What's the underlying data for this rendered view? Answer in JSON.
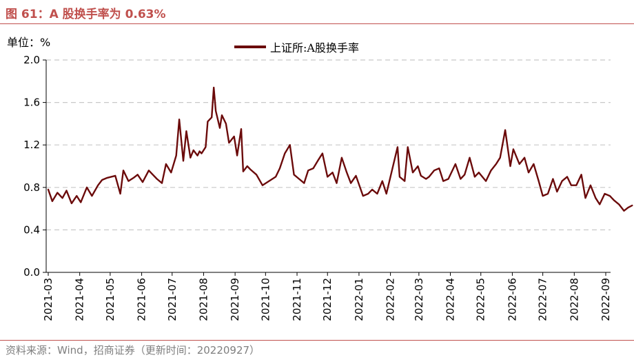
{
  "header": {
    "title": "图 61：A 股换手率为 0.63%"
  },
  "unit_label": "单位：%",
  "source": "资料来源：Wind，招商证券（更新时间：20220927）",
  "colors": {
    "accent": "#c0504d",
    "series": "#6b0a0a",
    "grid": "#c8c8c8"
  },
  "chart_data": {
    "type": "line",
    "ylim": [
      0,
      2.0
    ],
    "y_ticks": [
      "0.0",
      "0.4",
      "0.8",
      "1.2",
      "1.6",
      "2.0"
    ],
    "x_ticks": [
      "2021-03",
      "2021-04",
      "2021-05",
      "2021-06",
      "2021-07",
      "2021-08",
      "2021-09",
      "2021-10",
      "2021-11",
      "2021-12",
      "2022-01",
      "2022-02",
      "2022-03",
      "2022-04",
      "2022-05",
      "2022-06",
      "2022-07",
      "2022-08",
      "2022-09"
    ],
    "grid": "horizontal-dashed",
    "legend_position": "top-center",
    "series": [
      {
        "name": "上证所:A股换手率",
        "x": [
          "2021-03-01",
          "2021-03-05",
          "2021-03-10",
          "2021-03-15",
          "2021-03-19",
          "2021-03-24",
          "2021-03-29",
          "2021-04-02",
          "2021-04-08",
          "2021-04-13",
          "2021-04-19",
          "2021-04-23",
          "2021-04-28",
          "2021-05-06",
          "2021-05-11",
          "2021-05-14",
          "2021-05-19",
          "2021-05-24",
          "2021-05-28",
          "2021-06-02",
          "2021-06-08",
          "2021-06-11",
          "2021-06-16",
          "2021-06-21",
          "2021-06-25",
          "2021-06-30",
          "2021-07-05",
          "2021-07-08",
          "2021-07-12",
          "2021-07-15",
          "2021-07-19",
          "2021-07-22",
          "2021-07-26",
          "2021-07-28",
          "2021-07-30",
          "2021-08-03",
          "2021-08-05",
          "2021-08-09",
          "2021-08-11",
          "2021-08-13",
          "2021-08-17",
          "2021-08-19",
          "2021-08-23",
          "2021-08-26",
          "2021-08-31",
          "2021-09-03",
          "2021-09-07",
          "2021-09-09",
          "2021-09-13",
          "2021-09-16",
          "2021-09-22",
          "2021-09-28",
          "2021-10-11",
          "2021-10-15",
          "2021-10-20",
          "2021-10-25",
          "2021-10-29",
          "2021-11-03",
          "2021-11-08",
          "2021-11-12",
          "2021-11-17",
          "2021-11-22",
          "2021-11-26",
          "2021-12-01",
          "2021-12-06",
          "2021-12-10",
          "2021-12-15",
          "2021-12-20",
          "2021-12-24",
          "2021-12-29",
          "2022-01-05",
          "2022-01-10",
          "2022-01-14",
          "2022-01-19",
          "2022-01-24",
          "2022-01-28",
          "2022-02-08",
          "2022-02-10",
          "2022-02-15",
          "2022-02-18",
          "2022-02-23",
          "2022-02-28",
          "2022-03-03",
          "2022-03-08",
          "2022-03-11",
          "2022-03-16",
          "2022-03-21",
          "2022-03-25",
          "2022-03-30",
          "2022-04-06",
          "2022-04-11",
          "2022-04-15",
          "2022-04-20",
          "2022-04-25",
          "2022-04-29",
          "2022-05-06",
          "2022-05-11",
          "2022-05-16",
          "2022-05-20",
          "2022-05-25",
          "2022-05-30",
          "2022-06-02",
          "2022-06-08",
          "2022-06-13",
          "2022-06-17",
          "2022-06-22",
          "2022-06-27",
          "2022-07-01",
          "2022-07-06",
          "2022-07-11",
          "2022-07-15",
          "2022-07-20",
          "2022-07-25",
          "2022-07-29",
          "2022-08-03",
          "2022-08-08",
          "2022-08-12",
          "2022-08-17",
          "2022-08-22",
          "2022-08-26",
          "2022-08-31",
          "2022-09-05",
          "2022-09-09",
          "2022-09-14",
          "2022-09-19",
          "2022-09-23",
          "2022-09-27"
        ],
        "values": [
          0.78,
          0.67,
          0.75,
          0.7,
          0.77,
          0.65,
          0.72,
          0.66,
          0.8,
          0.72,
          0.82,
          0.87,
          0.89,
          0.91,
          0.74,
          0.96,
          0.86,
          0.89,
          0.92,
          0.85,
          0.96,
          0.93,
          0.88,
          0.84,
          1.02,
          0.94,
          1.1,
          1.44,
          1.05,
          1.33,
          1.08,
          1.15,
          1.1,
          1.14,
          1.12,
          1.18,
          1.42,
          1.46,
          1.74,
          1.52,
          1.36,
          1.48,
          1.4,
          1.22,
          1.28,
          1.1,
          1.35,
          0.95,
          1.0,
          0.97,
          0.92,
          0.82,
          0.9,
          0.98,
          1.12,
          1.2,
          0.92,
          0.88,
          0.84,
          0.96,
          0.98,
          1.06,
          1.12,
          0.9,
          0.94,
          0.84,
          1.08,
          0.94,
          0.84,
          0.91,
          0.72,
          0.74,
          0.78,
          0.74,
          0.86,
          0.74,
          1.18,
          0.9,
          0.86,
          1.18,
          0.94,
          1.0,
          0.91,
          0.88,
          0.9,
          0.96,
          0.98,
          0.86,
          0.88,
          1.02,
          0.88,
          0.92,
          1.08,
          0.9,
          0.94,
          0.86,
          0.96,
          1.02,
          1.08,
          1.34,
          1.0,
          1.16,
          1.02,
          1.08,
          0.94,
          1.02,
          0.86,
          0.72,
          0.74,
          0.88,
          0.76,
          0.86,
          0.9,
          0.82,
          0.82,
          0.92,
          0.7,
          0.82,
          0.7,
          0.64,
          0.74,
          0.72,
          0.68,
          0.64,
          0.58,
          0.61,
          0.63
        ]
      }
    ]
  }
}
